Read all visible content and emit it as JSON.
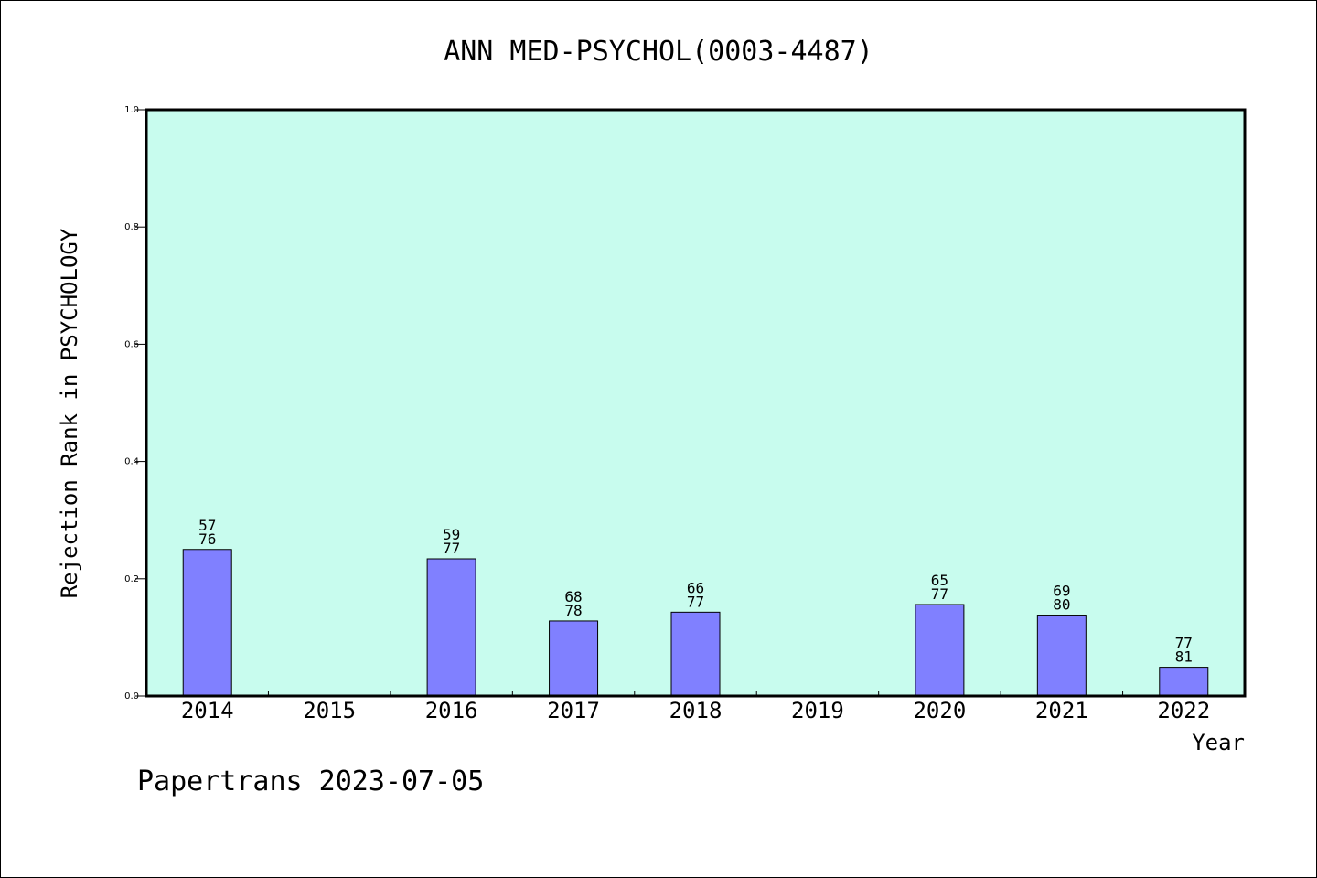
{
  "chart_data": {
    "type": "bar",
    "title": "ANN MED-PSYCHOL(0003-4487)",
    "xlabel": "Year",
    "ylabel": "Rejection Rank in PSYCHOLOGY",
    "ylim": [
      0,
      1.0
    ],
    "y_ticks": [
      "0.0",
      "0.2",
      "0.4",
      "0.6",
      "0.8",
      "1.0"
    ],
    "categories": [
      "2014",
      "2015",
      "2016",
      "2017",
      "2018",
      "2019",
      "2020",
      "2021",
      "2022"
    ],
    "values": [
      0.25,
      null,
      0.234,
      0.128,
      0.143,
      null,
      0.156,
      0.138,
      0.049
    ],
    "label_top": [
      "57",
      "",
      "59",
      "68",
      "66",
      "",
      "65",
      "69",
      "77"
    ],
    "label_bottom": [
      "76",
      "",
      "77",
      "78",
      "77",
      "",
      "77",
      "80",
      "81"
    ],
    "colors": {
      "plot_bg": "#c8fcee",
      "bar_fill": "#8080ff",
      "bar_stroke": "#000000"
    },
    "grid": false
  },
  "footer": {
    "text": "Papertrans 2023-07-05"
  }
}
